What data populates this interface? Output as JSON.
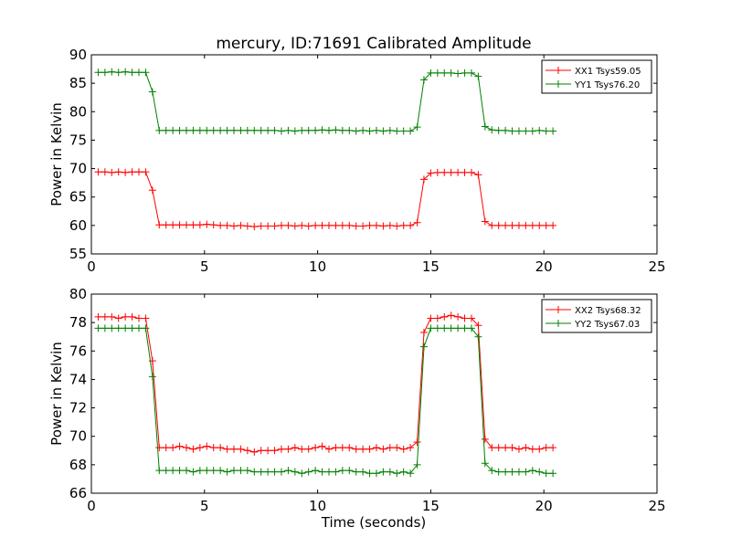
{
  "chart_data": [
    {
      "type": "line",
      "title": "mercury, ID:71691 Calibrated Amplitude",
      "xlabel": "",
      "ylabel": "Power in Kelvin",
      "xlim": [
        0,
        25
      ],
      "ylim": [
        55,
        90
      ],
      "xticks": [
        0,
        5,
        10,
        15,
        20,
        25
      ],
      "xtick_labels": [
        "0",
        "5",
        "10",
        "15",
        "20",
        "25"
      ],
      "yticks": [
        55,
        60,
        65,
        70,
        75,
        80,
        85,
        90
      ],
      "ytick_labels": [
        "55",
        "60",
        "65",
        "70",
        "75",
        "80",
        "85",
        "90"
      ],
      "grid": false,
      "legend_position": "top-right",
      "series": [
        {
          "name": "XX1 Tsys59.05",
          "color": "#ff0000",
          "marker": "+",
          "x": [
            0.3,
            0.6,
            0.9,
            1.2,
            1.5,
            1.8,
            2.1,
            2.4,
            2.7,
            3.0,
            3.3,
            3.6,
            3.9,
            4.2,
            4.5,
            4.8,
            5.1,
            5.4,
            5.7,
            6.0,
            6.3,
            6.6,
            6.9,
            7.2,
            7.5,
            7.8,
            8.1,
            8.4,
            8.7,
            9.0,
            9.3,
            9.6,
            9.9,
            10.2,
            10.5,
            10.8,
            11.1,
            11.4,
            11.7,
            12.0,
            12.3,
            12.6,
            12.9,
            13.2,
            13.5,
            13.8,
            14.1,
            14.4,
            14.7,
            15.0,
            15.3,
            15.6,
            15.9,
            16.2,
            16.5,
            16.8,
            17.1,
            17.4,
            17.7,
            18.0,
            18.3,
            18.6,
            18.9,
            19.2,
            19.5,
            19.8,
            20.1,
            20.4
          ],
          "y": [
            69.4,
            69.4,
            69.3,
            69.4,
            69.3,
            69.4,
            69.4,
            69.4,
            66.2,
            60.1,
            60.1,
            60.1,
            60.1,
            60.1,
            60.1,
            60.1,
            60.2,
            60.1,
            60.0,
            60.0,
            59.9,
            60.0,
            59.9,
            59.8,
            59.9,
            59.9,
            59.9,
            60.0,
            60.0,
            59.9,
            60.0,
            59.9,
            60.0,
            60.0,
            60.0,
            60.0,
            60.0,
            60.0,
            59.9,
            59.9,
            60.0,
            60.0,
            59.9,
            60.0,
            59.9,
            60.0,
            60.0,
            60.5,
            68.1,
            69.2,
            69.3,
            69.3,
            69.3,
            69.3,
            69.3,
            69.3,
            68.9,
            60.7,
            60.0,
            60.0,
            60.0,
            60.0,
            60.0,
            60.0,
            60.0,
            60.0,
            60.0,
            60.0
          ]
        },
        {
          "name": "YY1 Tsys76.20",
          "color": "#008000",
          "marker": "+",
          "x": [
            0.3,
            0.6,
            0.9,
            1.2,
            1.5,
            1.8,
            2.1,
            2.4,
            2.7,
            3.0,
            3.3,
            3.6,
            3.9,
            4.2,
            4.5,
            4.8,
            5.1,
            5.4,
            5.7,
            6.0,
            6.3,
            6.6,
            6.9,
            7.2,
            7.5,
            7.8,
            8.1,
            8.4,
            8.7,
            9.0,
            9.3,
            9.6,
            9.9,
            10.2,
            10.5,
            10.8,
            11.1,
            11.4,
            11.7,
            12.0,
            12.3,
            12.6,
            12.9,
            13.2,
            13.5,
            13.8,
            14.1,
            14.4,
            14.7,
            15.0,
            15.3,
            15.6,
            15.9,
            16.2,
            16.5,
            16.8,
            17.1,
            17.4,
            17.7,
            18.0,
            18.3,
            18.6,
            18.9,
            19.2,
            19.5,
            19.8,
            20.1,
            20.4
          ],
          "y": [
            86.9,
            86.9,
            87.0,
            86.9,
            87.0,
            86.9,
            86.9,
            86.9,
            83.5,
            76.7,
            76.7,
            76.7,
            76.7,
            76.7,
            76.7,
            76.7,
            76.7,
            76.7,
            76.7,
            76.7,
            76.7,
            76.7,
            76.7,
            76.7,
            76.7,
            76.7,
            76.7,
            76.6,
            76.7,
            76.6,
            76.7,
            76.7,
            76.7,
            76.8,
            76.7,
            76.8,
            76.7,
            76.7,
            76.6,
            76.7,
            76.6,
            76.7,
            76.6,
            76.7,
            76.6,
            76.6,
            76.6,
            77.3,
            85.6,
            86.8,
            86.8,
            86.8,
            86.8,
            86.7,
            86.8,
            86.8,
            86.2,
            77.4,
            76.8,
            76.7,
            76.7,
            76.6,
            76.6,
            76.6,
            76.6,
            76.7,
            76.6,
            76.6
          ]
        }
      ]
    },
    {
      "type": "line",
      "title": "",
      "xlabel": "Time (seconds)",
      "ylabel": "Power in Kelvin",
      "xlim": [
        0,
        25
      ],
      "ylim": [
        66,
        80
      ],
      "xticks": [
        0,
        5,
        10,
        15,
        20,
        25
      ],
      "xtick_labels": [
        "0",
        "5",
        "10",
        "15",
        "20",
        "25"
      ],
      "yticks": [
        66,
        68,
        70,
        72,
        74,
        76,
        78,
        80
      ],
      "ytick_labels": [
        "66",
        "68",
        "70",
        "72",
        "74",
        "76",
        "78",
        "80"
      ],
      "grid": false,
      "legend_position": "top-right",
      "series": [
        {
          "name": "XX2 Tsys68.32",
          "color": "#ff0000",
          "marker": "+",
          "x": [
            0.3,
            0.6,
            0.9,
            1.2,
            1.5,
            1.8,
            2.1,
            2.4,
            2.7,
            3.0,
            3.3,
            3.6,
            3.9,
            4.2,
            4.5,
            4.8,
            5.1,
            5.4,
            5.7,
            6.0,
            6.3,
            6.6,
            6.9,
            7.2,
            7.5,
            7.8,
            8.1,
            8.4,
            8.7,
            9.0,
            9.3,
            9.6,
            9.9,
            10.2,
            10.5,
            10.8,
            11.1,
            11.4,
            11.7,
            12.0,
            12.3,
            12.6,
            12.9,
            13.2,
            13.5,
            13.8,
            14.1,
            14.4,
            14.7,
            15.0,
            15.3,
            15.6,
            15.9,
            16.2,
            16.5,
            16.8,
            17.1,
            17.4,
            17.7,
            18.0,
            18.3,
            18.6,
            18.9,
            19.2,
            19.5,
            19.8,
            20.1,
            20.4
          ],
          "y": [
            78.4,
            78.4,
            78.4,
            78.3,
            78.4,
            78.4,
            78.3,
            78.3,
            75.3,
            69.2,
            69.2,
            69.2,
            69.3,
            69.2,
            69.1,
            69.2,
            69.3,
            69.2,
            69.2,
            69.1,
            69.1,
            69.1,
            69.0,
            68.9,
            69.0,
            69.0,
            69.0,
            69.1,
            69.1,
            69.2,
            69.1,
            69.1,
            69.2,
            69.3,
            69.1,
            69.2,
            69.2,
            69.2,
            69.1,
            69.1,
            69.1,
            69.2,
            69.1,
            69.2,
            69.2,
            69.1,
            69.2,
            69.6,
            77.3,
            78.3,
            78.3,
            78.4,
            78.5,
            78.4,
            78.3,
            78.3,
            77.8,
            69.8,
            69.2,
            69.2,
            69.2,
            69.2,
            69.1,
            69.2,
            69.1,
            69.1,
            69.2,
            69.2
          ]
        },
        {
          "name": "YY2 Tsys67.03",
          "color": "#008000",
          "marker": "+",
          "x": [
            0.3,
            0.6,
            0.9,
            1.2,
            1.5,
            1.8,
            2.1,
            2.4,
            2.7,
            3.0,
            3.3,
            3.6,
            3.9,
            4.2,
            4.5,
            4.8,
            5.1,
            5.4,
            5.7,
            6.0,
            6.3,
            6.6,
            6.9,
            7.2,
            7.5,
            7.8,
            8.1,
            8.4,
            8.7,
            9.0,
            9.3,
            9.6,
            9.9,
            10.2,
            10.5,
            10.8,
            11.1,
            11.4,
            11.7,
            12.0,
            12.3,
            12.6,
            12.9,
            13.2,
            13.5,
            13.8,
            14.1,
            14.4,
            14.7,
            15.0,
            15.3,
            15.6,
            15.9,
            16.2,
            16.5,
            16.8,
            17.1,
            17.4,
            17.7,
            18.0,
            18.3,
            18.6,
            18.9,
            19.2,
            19.5,
            19.8,
            20.1,
            20.4
          ],
          "y": [
            77.6,
            77.6,
            77.6,
            77.6,
            77.6,
            77.6,
            77.6,
            77.6,
            74.2,
            67.6,
            67.6,
            67.6,
            67.6,
            67.6,
            67.5,
            67.6,
            67.6,
            67.6,
            67.6,
            67.5,
            67.6,
            67.6,
            67.6,
            67.5,
            67.5,
            67.5,
            67.5,
            67.5,
            67.6,
            67.5,
            67.4,
            67.5,
            67.6,
            67.5,
            67.5,
            67.5,
            67.6,
            67.6,
            67.5,
            67.5,
            67.4,
            67.4,
            67.5,
            67.5,
            67.4,
            67.5,
            67.4,
            68.0,
            76.3,
            77.6,
            77.6,
            77.6,
            77.6,
            77.6,
            77.6,
            77.6,
            77.0,
            68.1,
            67.6,
            67.5,
            67.5,
            67.5,
            67.5,
            67.5,
            67.6,
            67.5,
            67.4,
            67.4
          ]
        }
      ]
    }
  ]
}
